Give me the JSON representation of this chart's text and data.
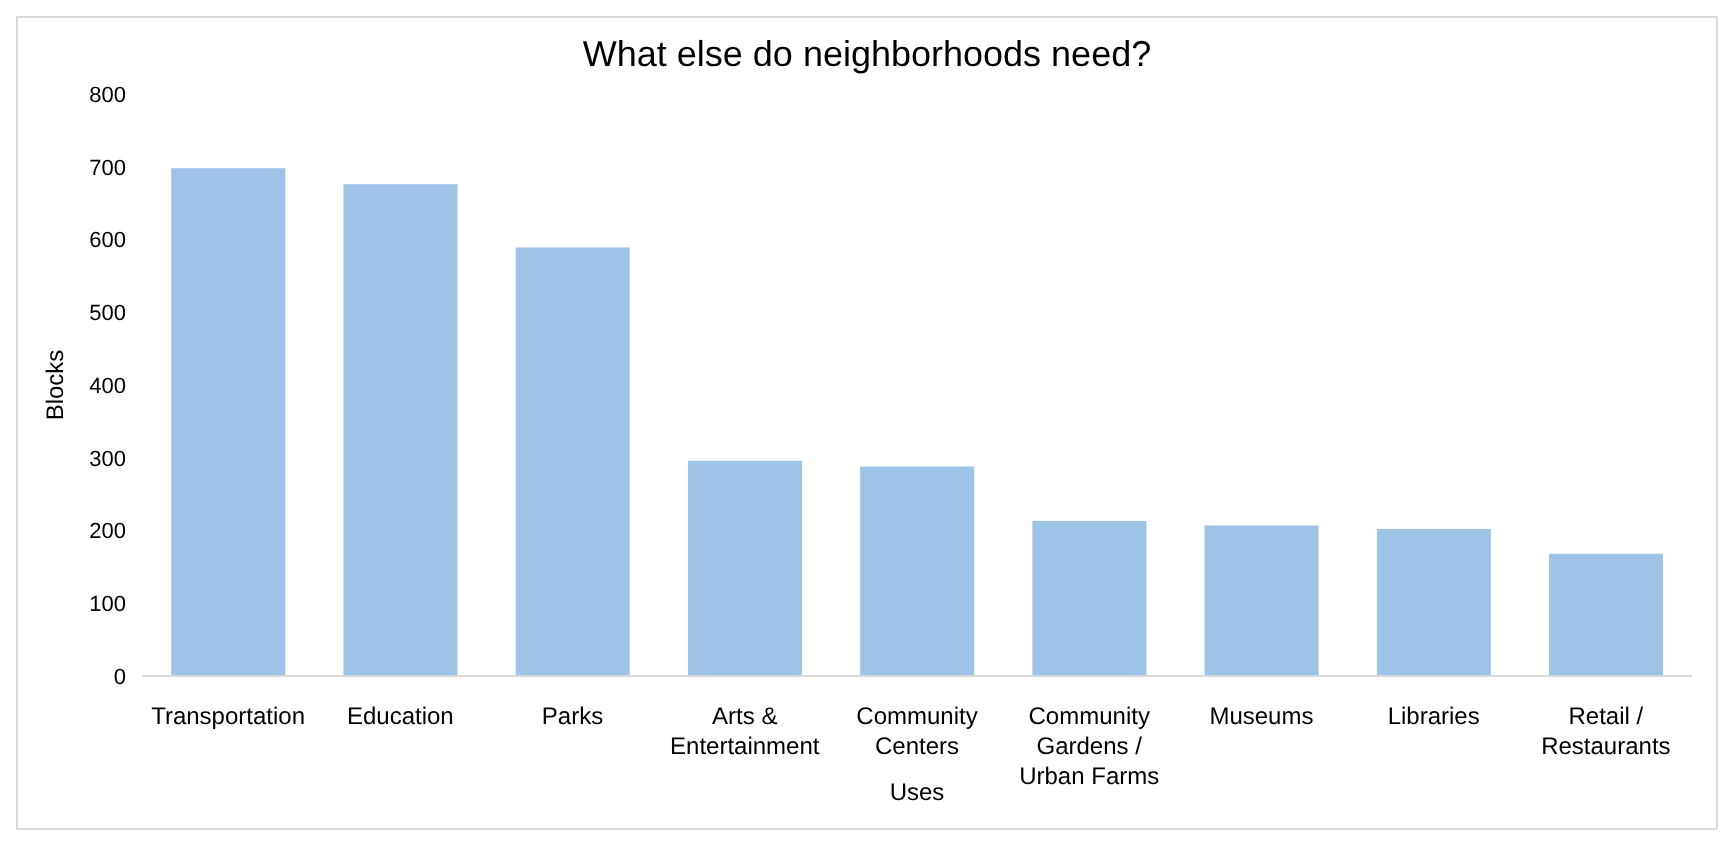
{
  "chart_data": {
    "type": "bar",
    "title": "What else do neighborhoods need?",
    "xlabel": "Uses",
    "ylabel": "Blocks",
    "categories": [
      "Transportation",
      "Education",
      "Parks",
      "Arts & Entertainment",
      "Community Centers",
      "Community Gardens / Urban Farms",
      "Museums",
      "Libraries",
      "Retail / Restaurants"
    ],
    "values": [
      698,
      676,
      589,
      296,
      288,
      213,
      207,
      202,
      168
    ],
    "color": "#9dc3e6",
    "ylim": [
      0,
      800
    ],
    "yticks": [
      0,
      100,
      200,
      300,
      400,
      500,
      600,
      700,
      800
    ],
    "grid": false
  }
}
